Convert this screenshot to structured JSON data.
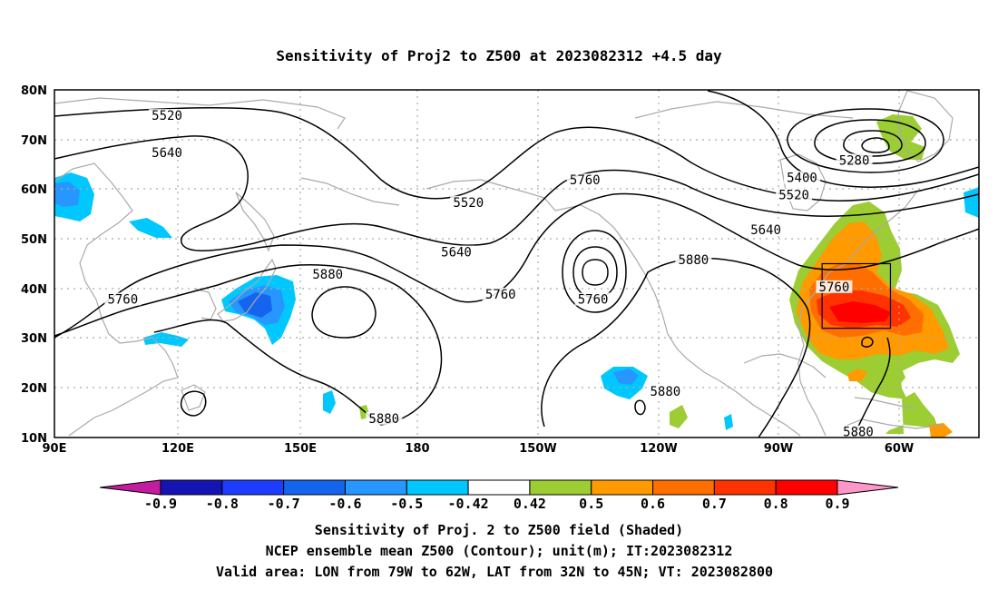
{
  "title": "Sensitivity of Proj2 to Z500 at 2023082312 +4.5 day",
  "lat_labels": [
    "80N",
    "70N",
    "60N",
    "50N",
    "40N",
    "30N",
    "20N",
    "10N"
  ],
  "lon_labels": [
    "90E",
    "120E",
    "150E",
    "180",
    "150W",
    "120W",
    "90W",
    "60W"
  ],
  "contour_labels": [
    {
      "text": "5520",
      "lon": 118,
      "lat": 74.5
    },
    {
      "text": "5640",
      "lon": 118,
      "lat": 67
    },
    {
      "text": "5760",
      "lon": 107,
      "lat": 37.5
    },
    {
      "text": "5880",
      "lon": 158,
      "lat": 42.5
    },
    {
      "text": "5880",
      "lon": 172,
      "lat": 13.5
    },
    {
      "text": "5520",
      "lon": 193,
      "lat": 57
    },
    {
      "text": "5640",
      "lon": 190,
      "lat": 47
    },
    {
      "text": "5760",
      "lon": 201,
      "lat": 38.5
    },
    {
      "text": "5760",
      "lon": 222,
      "lat": 61.5
    },
    {
      "text": "5760",
      "lon": 224,
      "lat": 37.5
    },
    {
      "text": "5880",
      "lon": 242,
      "lat": 19
    },
    {
      "text": "5880",
      "lon": 249,
      "lat": 45.5
    },
    {
      "text": "5400",
      "lon": 276,
      "lat": 62
    },
    {
      "text": "5280",
      "lon": 289,
      "lat": 65.5
    },
    {
      "text": "5520",
      "lon": 274,
      "lat": 58.5
    },
    {
      "text": "5640",
      "lon": 267,
      "lat": 51.5
    },
    {
      "text": "5760",
      "lon": 284,
      "lat": 40
    },
    {
      "text": "5880",
      "lon": 290,
      "lat": 10.8
    }
  ],
  "valid_area": {
    "lon_min": -79,
    "lon_max": -62,
    "lat_min": 32,
    "lat_max": 45
  },
  "colorbar": {
    "labels": [
      "-0.9",
      "-0.8",
      "-0.7",
      "-0.6",
      "-0.5",
      "-0.42",
      "0.42",
      "0.5",
      "0.6",
      "0.7",
      "0.8",
      "0.9"
    ],
    "colors": [
      "#c41ca0",
      "#1414b4",
      "#1e3cff",
      "#1464ee",
      "#2896ff",
      "#00c8ff",
      "#ffffff",
      "#9ccd32",
      "#ff9a00",
      "#ff6e00",
      "#ff3200",
      "#ff0000",
      "#ff96c8"
    ]
  },
  "captions": [
    "Sensitivity of Proj. 2 to Z500 field (Shaded)",
    "NCEP ensemble mean Z500 (Contour); unit(m); IT:2023082312",
    "Valid area: LON from 79W to 62W, LAT from 32N to 45N; VT: 2023082800"
  ]
}
